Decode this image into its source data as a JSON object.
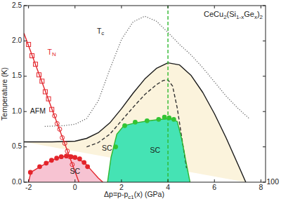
{
  "chart_data": {
    "type": "line",
    "title": [
      {
        "text": "CeCu"
      },
      {
        "text": "2",
        "sub": true
      },
      {
        "text": "(Si"
      },
      {
        "text": "1-x",
        "sub": true
      },
      {
        "text": "Ge"
      },
      {
        "text": "x",
        "sub": true
      },
      {
        "text": ")"
      },
      {
        "text": "2",
        "sub": true
      }
    ],
    "x_label": [
      {
        "text": "Δp=p-p"
      },
      {
        "text": "c1",
        "sub": true
      },
      {
        "text": "(x) (GPa)"
      }
    ],
    "y_label": "Temperature (K)",
    "xlim": [
      -2.2,
      8.2
    ],
    "ylim": [
      0,
      2.5
    ],
    "xticks": [
      -2,
      0,
      2,
      4,
      6,
      8
    ],
    "yticks": [
      {
        "value": 0,
        "label": "0.0"
      },
      0.5,
      {
        "value": 1,
        "label": "1.0"
      },
      1.5,
      {
        "value": 2,
        "label": "2.0"
      },
      2.5
    ],
    "grid": false,
    "series": [
      {
        "type": "area",
        "color": "#fbf3dc",
        "x": [
          -2.2,
          -1,
          0,
          0.5,
          1,
          1.5,
          2,
          2.5,
          3,
          3.5,
          4,
          4.5,
          5,
          5.5,
          6,
          6.5,
          7,
          7.35
        ],
        "values": [
          0.57,
          0.57,
          0.58,
          0.62,
          0.7,
          0.84,
          1.04,
          1.26,
          1.46,
          1.61,
          1.69,
          1.66,
          1.51,
          1.27,
          0.97,
          0.63,
          0.26,
          0
        ]
      },
      {
        "type": "area",
        "color": "#f7c3d2",
        "x": [
          -2.0,
          -1.9,
          -1.5,
          -1.0,
          -0.6,
          -0.3,
          0,
          0.4,
          0.7,
          1.0,
          1.2
        ],
        "values": [
          0,
          0.14,
          0.22,
          0.31,
          0.36,
          0.37,
          0.35,
          0.28,
          0.17,
          0.06,
          0
        ]
      },
      {
        "type": "area",
        "color": "#45e3b4",
        "x": [
          1.4,
          1.55,
          1.8,
          2.1,
          2.6,
          3.2,
          3.7,
          4.1,
          4.4,
          4.6,
          4.8,
          4.95
        ],
        "values": [
          0,
          0.35,
          0.68,
          0.8,
          0.84,
          0.87,
          0.89,
          0.9,
          0.86,
          0.6,
          0.25,
          0
        ]
      },
      {
        "type": "line",
        "color": "#1a1a1a",
        "line_style": "solid",
        "x": [
          -2.2,
          -1,
          0,
          0.5,
          1,
          1.5,
          2,
          2.5,
          3,
          3.5,
          4,
          4.5,
          5,
          5.5,
          6,
          6.5,
          7,
          7.35
        ],
        "values": [
          0.57,
          0.57,
          0.58,
          0.62,
          0.7,
          0.84,
          1.04,
          1.26,
          1.46,
          1.61,
          1.69,
          1.66,
          1.51,
          1.27,
          0.97,
          0.63,
          0.26,
          0
        ]
      },
      {
        "type": "line",
        "color": "#333333",
        "line_style": "dashed",
        "x": [
          0.5,
          1,
          1.5,
          2,
          2.5,
          3,
          3.5,
          3.8,
          4.0,
          4.2,
          4.4,
          4.6,
          4.8
        ],
        "values": [
          0.5,
          0.56,
          0.68,
          0.87,
          1.06,
          1.24,
          1.38,
          1.44,
          1.45,
          1.36,
          1.05,
          0.62,
          0.2
        ]
      },
      {
        "type": "line",
        "color": "#666666",
        "line_style": "dotted",
        "x": [
          -1.3,
          -0.5,
          0,
          0.5,
          1,
          1.5,
          2,
          2.5,
          3,
          3.5,
          4,
          4.5,
          5,
          5.5,
          6,
          6.5,
          7,
          7.5
        ],
        "values": [
          0.79,
          0.8,
          0.82,
          0.9,
          1.15,
          1.6,
          2.02,
          2.27,
          2.35,
          2.28,
          2.12,
          1.95,
          1.8,
          1.62,
          1.42,
          1.22,
          1.05,
          0.9
        ]
      },
      {
        "type": "line",
        "color": "#e3242b",
        "line_style": "solid",
        "x": [
          -2.0,
          -1.9,
          -1.5,
          -1.0,
          -0.6,
          -0.3,
          0,
          0.4,
          0.7,
          1.0,
          1.2
        ],
        "values": [
          0,
          0.14,
          0.22,
          0.31,
          0.36,
          0.37,
          0.35,
          0.28,
          0.17,
          0.06,
          0
        ]
      },
      {
        "type": "line",
        "color": "#2fb82f",
        "line_style": "solid",
        "x": [
          1.4,
          1.55,
          1.8,
          2.1,
          2.6,
          3.2,
          3.7,
          4.1,
          4.4,
          4.6,
          4.8,
          4.95
        ],
        "values": [
          0,
          0.35,
          0.68,
          0.8,
          0.84,
          0.87,
          0.89,
          0.9,
          0.86,
          0.6,
          0.25,
          0
        ]
      },
      {
        "type": "line",
        "color": "#e3242b",
        "line_style": "solid",
        "x": [
          -2.2,
          0.17
        ],
        "values": [
          2.11,
          0
        ]
      },
      {
        "type": "line",
        "color": "#2fb82f",
        "line_style": "dashed",
        "x": [
          4,
          4
        ],
        "values": [
          0,
          2.5
        ]
      },
      {
        "type": "scatter",
        "color": "#e3242b",
        "marker": "square-open",
        "x": [
          -2.0,
          -1.85,
          -1.7,
          -1.55,
          -1.42,
          -1.28,
          -1.14,
          -1.0
        ],
        "values": [
          1.95,
          1.79,
          1.67,
          1.52,
          1.43,
          1.28,
          1.18,
          1.03
        ]
      },
      {
        "type": "scatter",
        "color": "#e3242b",
        "marker": "circle-open",
        "x": [
          -0.88,
          -0.77,
          -0.66,
          -0.55,
          -0.44,
          -0.33,
          -0.22,
          -0.12
        ],
        "values": [
          0.94,
          0.83,
          0.75,
          0.63,
          0.55,
          0.44,
          0.36,
          0.25
        ]
      },
      {
        "type": "scatter",
        "color": "#e3242b",
        "marker": "circle",
        "x": [
          -1.92,
          -1.52,
          -1.24,
          -1.01,
          -0.79,
          -0.59,
          -0.37,
          -0.17,
          0,
          0.2,
          0.39,
          0.54
        ],
        "values": [
          0.14,
          0.22,
          0.27,
          0.31,
          0.34,
          0.36,
          0.37,
          0.36,
          0.35,
          0.33,
          0.28,
          0.22
        ]
      },
      {
        "type": "scatter",
        "color": "#33c433",
        "marker": "circle",
        "x": [
          1.75,
          2.14,
          2.59,
          3.1,
          3.6,
          3.85,
          4.05,
          4.25
        ],
        "values": [
          0.5,
          0.8,
          0.85,
          0.87,
          0.89,
          0.92,
          0.91,
          0.89
        ]
      }
    ],
    "annotations": [
      {
        "parts": [
          {
            "text": "T"
          },
          {
            "text": "N",
            "sub": true
          }
        ],
        "x": -1.0,
        "y": 1.84,
        "color": "#e3242b"
      },
      {
        "parts": [
          {
            "text": "T"
          },
          {
            "text": "c",
            "sub": true
          }
        ],
        "x": 1.1,
        "y": 2.13,
        "color": "#1a1a1a"
      },
      {
        "parts": [
          {
            "text": "AFM"
          }
        ],
        "x": -1.6,
        "y": 1.0,
        "color": "#1a1a1a"
      },
      {
        "parts": [
          {
            "text": "SC"
          }
        ],
        "x": 0.0,
        "y": 0.15,
        "color": "#1a1a1a"
      },
      {
        "parts": [
          {
            "text": "SC"
          }
        ],
        "x": 1.38,
        "y": 0.48,
        "color": "#1a1a1a"
      },
      {
        "parts": [
          {
            "text": "SC"
          }
        ],
        "x": 3.45,
        "y": 0.45,
        "color": "#1a1a1a"
      },
      {
        "parts": [
          {
            "text": "100"
          }
        ],
        "x": 8.51,
        "y": 0,
        "color": "#1a1a1a"
      }
    ]
  }
}
